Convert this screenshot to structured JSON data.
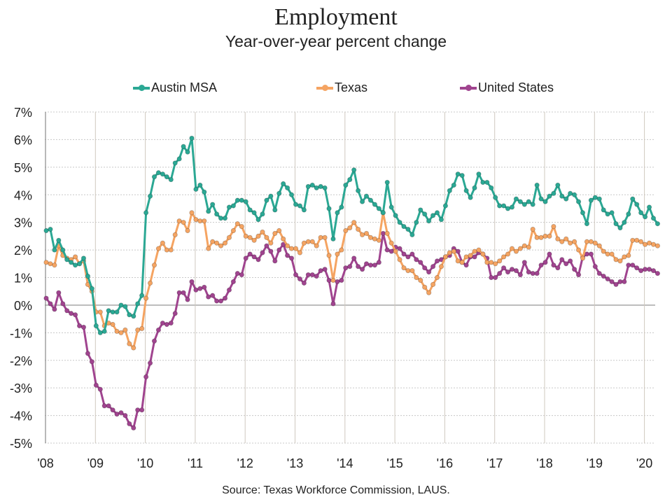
{
  "chart_data": {
    "type": "line",
    "title": "Employment",
    "subtitle": "Year-over-year percent change",
    "xlabel": "",
    "ylabel": "",
    "ylim": [
      -5,
      7
    ],
    "yticks": [
      "7%",
      "6%",
      "5%",
      "4%",
      "3%",
      "2%",
      "1%",
      "0%",
      "-1%",
      "-2%",
      "-3%",
      "-4%",
      "-5%"
    ],
    "ytick_values": [
      7,
      6,
      5,
      4,
      3,
      2,
      1,
      0,
      -1,
      -2,
      -3,
      -4,
      -5
    ],
    "xticks": [
      "'08",
      "'09",
      "'10",
      "'11",
      "'12",
      "'13",
      "'14",
      "'15",
      "'16",
      "'17",
      "'18",
      "'19",
      "'20"
    ],
    "x_start": "Jan 2008",
    "x_frequency": "monthly",
    "legend_position": "top",
    "grid": true,
    "source": "Source:  Texas Workforce Commission, LAUS.",
    "series": [
      {
        "name": "Austin MSA",
        "color": "#2ba894",
        "values": [
          2.7,
          2.75,
          2.0,
          2.35,
          2.0,
          1.65,
          1.55,
          1.45,
          1.5,
          1.7,
          1.05,
          0.6,
          -0.75,
          -1.0,
          -0.95,
          -0.2,
          -0.25,
          -0.25,
          0.0,
          -0.05,
          -0.35,
          -0.4,
          0.05,
          0.35,
          3.35,
          3.95,
          4.65,
          4.8,
          4.75,
          4.65,
          4.55,
          5.15,
          5.3,
          5.75,
          5.55,
          6.05,
          4.2,
          4.35,
          4.1,
          3.4,
          3.65,
          3.3,
          3.15,
          3.15,
          3.55,
          3.6,
          3.8,
          3.8,
          3.75,
          3.45,
          3.35,
          3.1,
          3.3,
          3.8,
          3.95,
          3.45,
          4.05,
          4.4,
          4.25,
          4.0,
          3.65,
          3.6,
          3.45,
          4.3,
          4.35,
          4.25,
          4.3,
          4.25,
          3.5,
          2.4,
          3.35,
          3.55,
          4.35,
          4.55,
          4.9,
          4.15,
          3.75,
          3.95,
          3.8,
          3.65,
          3.5,
          3.35,
          4.45,
          3.55,
          3.25,
          3.0,
          2.85,
          2.75,
          2.55,
          3.0,
          3.45,
          3.3,
          3.05,
          3.25,
          3.35,
          3.1,
          3.6,
          4.15,
          4.35,
          4.75,
          4.7,
          4.15,
          3.9,
          4.25,
          4.75,
          4.45,
          4.45,
          4.25,
          3.9,
          3.6,
          3.6,
          3.5,
          3.55,
          3.85,
          3.75,
          3.65,
          3.75,
          3.65,
          4.35,
          3.85,
          3.75,
          3.95,
          4.05,
          4.35,
          3.95,
          3.85,
          4.05,
          4.0,
          3.75,
          3.35,
          2.95,
          3.8,
          3.9,
          3.85,
          3.45,
          3.3,
          3.35,
          2.95,
          2.8,
          3.0,
          3.3,
          3.85,
          3.65,
          3.35,
          3.2,
          3.55,
          3.15,
          2.95
        ]
      },
      {
        "name": "Texas",
        "color": "#f5a462",
        "values": [
          1.55,
          1.5,
          1.45,
          2.15,
          1.8,
          1.7,
          1.65,
          1.75,
          1.5,
          1.6,
          0.75,
          0.5,
          -0.25,
          -0.25,
          -0.75,
          -0.65,
          -0.7,
          -0.95,
          -1.0,
          -0.9,
          -1.4,
          -1.55,
          -0.9,
          -0.85,
          0.25,
          0.8,
          1.45,
          2.05,
          2.25,
          2.0,
          2.0,
          2.55,
          3.05,
          3.0,
          2.7,
          3.35,
          3.1,
          3.05,
          3.05,
          2.05,
          2.3,
          2.25,
          2.15,
          2.25,
          2.45,
          2.7,
          2.95,
          2.85,
          2.5,
          2.45,
          2.35,
          2.5,
          2.65,
          2.45,
          2.25,
          2.6,
          2.7,
          2.4,
          2.15,
          2.05,
          2.05,
          1.9,
          2.25,
          2.3,
          2.3,
          2.15,
          2.45,
          2.45,
          1.8,
          0.9,
          1.85,
          2.0,
          2.7,
          2.8,
          3.0,
          2.75,
          2.55,
          2.6,
          2.45,
          2.4,
          2.35,
          3.35,
          2.6,
          2.25,
          1.95,
          1.65,
          1.35,
          1.25,
          1.25,
          1.0,
          0.9,
          0.65,
          0.45,
          0.75,
          1.0,
          1.4,
          1.75,
          1.9,
          1.95,
          1.6,
          1.55,
          1.75,
          1.8,
          1.95,
          2.0,
          1.85,
          1.55,
          1.55,
          1.5,
          1.6,
          1.75,
          1.85,
          2.05,
          1.95,
          2.05,
          2.15,
          2.1,
          2.75,
          2.45,
          2.45,
          2.5,
          2.5,
          2.85,
          2.4,
          2.3,
          2.4,
          2.25,
          2.3,
          2.0,
          1.7,
          2.3,
          2.3,
          2.25,
          2.15,
          1.95,
          1.85,
          1.85,
          1.65,
          1.6,
          1.75,
          1.8,
          2.35,
          2.35,
          2.3,
          2.2,
          2.25,
          2.2,
          2.15
        ]
      },
      {
        "name": "United States",
        "color": "#a0448f",
        "values": [
          0.25,
          0.05,
          -0.15,
          0.45,
          0.05,
          -0.2,
          -0.3,
          -0.35,
          -0.75,
          -0.8,
          -1.75,
          -2.05,
          -2.9,
          -3.05,
          -3.65,
          -3.65,
          -3.8,
          -3.95,
          -3.9,
          -4.0,
          -4.3,
          -4.45,
          -3.8,
          -3.8,
          -2.6,
          -2.1,
          -1.3,
          -0.9,
          -0.65,
          -0.7,
          -0.65,
          -0.3,
          0.45,
          0.45,
          0.2,
          0.85,
          0.55,
          0.6,
          0.65,
          0.3,
          0.35,
          0.15,
          0.15,
          0.25,
          0.55,
          0.85,
          1.15,
          1.1,
          1.7,
          1.85,
          1.75,
          1.65,
          1.9,
          2.15,
          1.95,
          1.6,
          2.0,
          2.2,
          1.8,
          1.7,
          1.1,
          0.95,
          0.8,
          1.1,
          1.1,
          1.05,
          1.25,
          1.3,
          0.9,
          0.05,
          0.85,
          0.9,
          1.35,
          1.4,
          1.7,
          1.4,
          1.3,
          1.5,
          1.45,
          1.45,
          1.55,
          2.6,
          2.0,
          1.95,
          2.1,
          2.05,
          1.85,
          1.75,
          1.85,
          1.65,
          1.55,
          1.35,
          1.2,
          1.4,
          1.6,
          1.65,
          1.75,
          1.8,
          2.05,
          1.95,
          1.55,
          1.45,
          1.75,
          1.75,
          1.9,
          1.85,
          1.7,
          1.0,
          1.0,
          1.15,
          1.35,
          1.2,
          1.3,
          1.25,
          1.1,
          1.55,
          1.2,
          1.15,
          1.15,
          1.45,
          1.55,
          1.85,
          1.45,
          1.35,
          1.65,
          1.5,
          1.6,
          1.3,
          1.1,
          1.75,
          1.85,
          1.85,
          1.4,
          1.15,
          1.05,
          0.95,
          0.85,
          0.75,
          0.85,
          0.85,
          1.45,
          1.45,
          1.35,
          1.25,
          1.3,
          1.3,
          1.25,
          1.15
        ]
      }
    ]
  }
}
